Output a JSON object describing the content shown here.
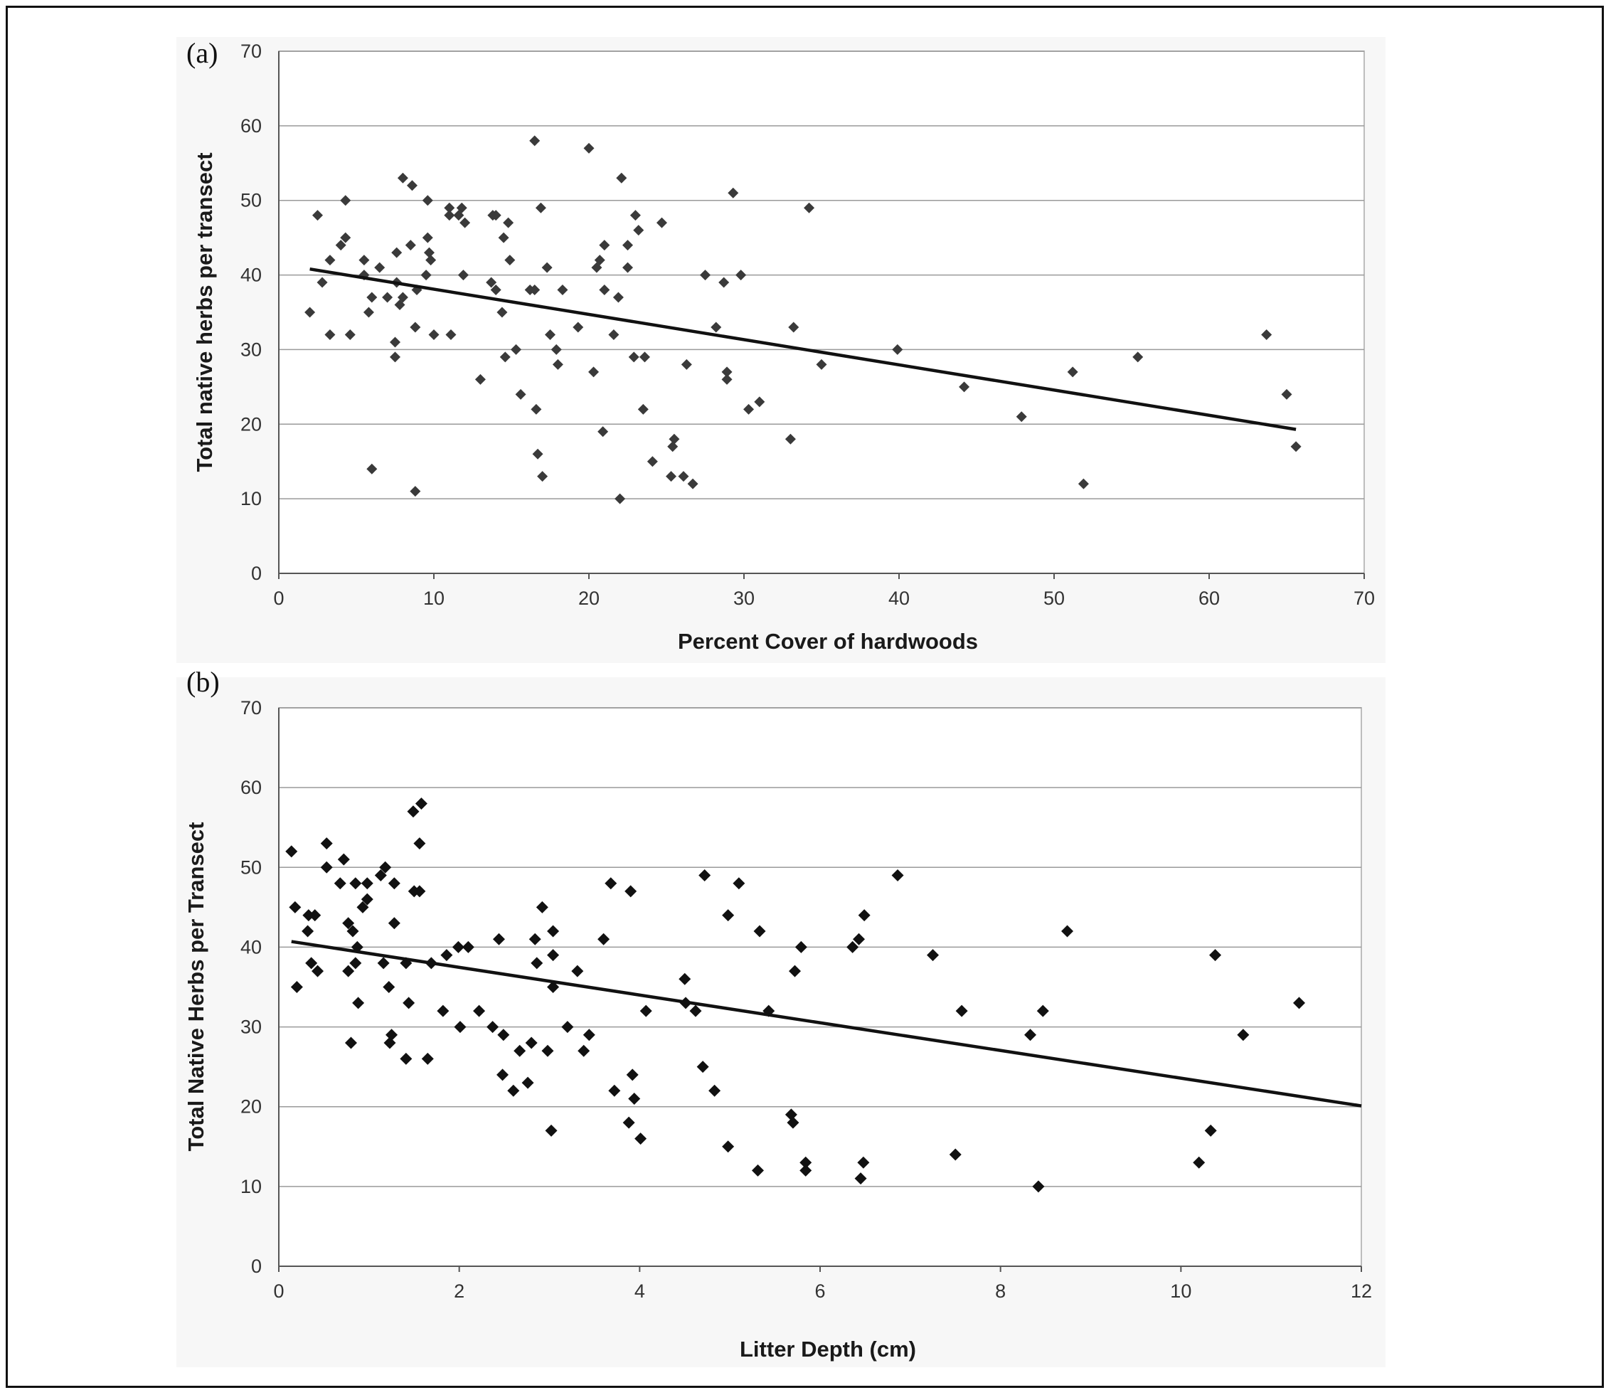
{
  "chart_data": [
    {
      "type": "scatter",
      "panel_label": "(a)",
      "xlabel": "Percent Cover of hardwoods",
      "ylabel": "Total native herbs per transect",
      "xlim": [
        0,
        70
      ],
      "ylim": [
        0,
        70
      ],
      "xticks": [
        "0",
        "10",
        "20",
        "30",
        "40",
        "50",
        "60",
        "70"
      ],
      "yticks": [
        "0",
        "10",
        "20",
        "30",
        "40",
        "50",
        "60",
        "70"
      ],
      "grid": "horizontal",
      "marker_color": "#3a3a3a",
      "trendline": {
        "x": [
          2.0,
          65.6
        ],
        "y": [
          40.8,
          19.3
        ]
      },
      "points": [
        [
          2.0,
          35
        ],
        [
          2.5,
          48
        ],
        [
          2.8,
          39
        ],
        [
          3.3,
          42
        ],
        [
          3.3,
          32
        ],
        [
          4.0,
          44
        ],
        [
          4.3,
          45
        ],
        [
          4.3,
          50
        ],
        [
          4.6,
          32
        ],
        [
          5.5,
          42
        ],
        [
          5.5,
          40
        ],
        [
          5.8,
          35
        ],
        [
          6.0,
          37
        ],
        [
          6.0,
          14
        ],
        [
          6.5,
          41
        ],
        [
          7.0,
          37
        ],
        [
          7.5,
          31
        ],
        [
          7.5,
          29
        ],
        [
          7.6,
          43
        ],
        [
          7.6,
          39
        ],
        [
          7.8,
          36
        ],
        [
          8.0,
          53
        ],
        [
          8.0,
          37
        ],
        [
          8.5,
          44
        ],
        [
          8.6,
          52
        ],
        [
          8.8,
          11
        ],
        [
          8.8,
          33
        ],
        [
          8.9,
          38
        ],
        [
          9.5,
          40
        ],
        [
          9.6,
          50
        ],
        [
          9.6,
          45
        ],
        [
          9.7,
          43
        ],
        [
          9.8,
          42
        ],
        [
          10.0,
          32
        ],
        [
          11.0,
          48
        ],
        [
          11.0,
          49
        ],
        [
          11.1,
          32
        ],
        [
          11.6,
          48
        ],
        [
          11.8,
          49
        ],
        [
          11.9,
          40
        ],
        [
          12.0,
          47
        ],
        [
          13.0,
          26
        ],
        [
          13.7,
          39
        ],
        [
          13.8,
          48
        ],
        [
          14.0,
          48
        ],
        [
          14.0,
          38
        ],
        [
          14.4,
          35
        ],
        [
          14.5,
          45
        ],
        [
          14.6,
          29
        ],
        [
          14.8,
          47
        ],
        [
          14.9,
          42
        ],
        [
          15.3,
          30
        ],
        [
          15.6,
          24
        ],
        [
          16.2,
          38
        ],
        [
          16.5,
          38
        ],
        [
          16.5,
          58
        ],
        [
          16.6,
          22
        ],
        [
          16.7,
          16
        ],
        [
          16.9,
          49
        ],
        [
          17.0,
          13
        ],
        [
          17.3,
          41
        ],
        [
          17.5,
          32
        ],
        [
          17.9,
          30
        ],
        [
          18.0,
          28
        ],
        [
          18.3,
          38
        ],
        [
          19.3,
          33
        ],
        [
          20.0,
          57
        ],
        [
          20.3,
          27
        ],
        [
          20.5,
          41
        ],
        [
          20.7,
          42
        ],
        [
          20.9,
          19
        ],
        [
          21.0,
          38
        ],
        [
          21.0,
          44
        ],
        [
          21.6,
          32
        ],
        [
          21.9,
          37
        ],
        [
          22.0,
          10
        ],
        [
          22.1,
          53
        ],
        [
          22.5,
          44
        ],
        [
          22.5,
          41
        ],
        [
          22.9,
          29
        ],
        [
          23.0,
          48
        ],
        [
          23.2,
          46
        ],
        [
          23.5,
          22
        ],
        [
          23.6,
          29
        ],
        [
          24.1,
          15
        ],
        [
          24.7,
          47
        ],
        [
          25.3,
          13
        ],
        [
          25.4,
          17
        ],
        [
          25.5,
          18
        ],
        [
          26.1,
          13
        ],
        [
          26.3,
          28
        ],
        [
          26.7,
          12
        ],
        [
          27.5,
          40
        ],
        [
          28.2,
          33
        ],
        [
          28.7,
          39
        ],
        [
          28.9,
          26
        ],
        [
          28.9,
          27
        ],
        [
          29.3,
          51
        ],
        [
          29.8,
          40
        ],
        [
          30.3,
          22
        ],
        [
          31.0,
          23
        ],
        [
          33.0,
          18
        ],
        [
          33.2,
          33
        ],
        [
          34.2,
          49
        ],
        [
          35.0,
          28
        ],
        [
          39.9,
          30
        ],
        [
          44.2,
          25
        ],
        [
          47.9,
          21
        ],
        [
          51.2,
          27
        ],
        [
          51.9,
          12
        ],
        [
          55.4,
          29
        ],
        [
          63.7,
          32
        ],
        [
          65.0,
          24
        ],
        [
          65.6,
          17
        ]
      ]
    },
    {
      "type": "scatter",
      "panel_label": "(b)",
      "xlabel": "Litter Depth (cm)",
      "ylabel": "Total Native Herbs per Transect",
      "xlim": [
        0,
        12
      ],
      "ylim": [
        0,
        70
      ],
      "xticks": [
        "0",
        "2",
        "4",
        "6",
        "8",
        "10",
        "12"
      ],
      "yticks": [
        "0",
        "10",
        "20",
        "30",
        "40",
        "50",
        "60",
        "70"
      ],
      "grid": "horizontal",
      "marker_color": "#111111",
      "trendline": {
        "x": [
          0.14,
          12.0
        ],
        "y": [
          40.7,
          20.1
        ]
      },
      "points": [
        [
          0.14,
          52
        ],
        [
          0.18,
          45
        ],
        [
          0.2,
          35
        ],
        [
          0.32,
          42
        ],
        [
          0.33,
          44
        ],
        [
          0.36,
          38
        ],
        [
          0.4,
          44
        ],
        [
          0.43,
          37
        ],
        [
          0.53,
          53
        ],
        [
          0.53,
          50
        ],
        [
          0.68,
          48
        ],
        [
          0.72,
          51
        ],
        [
          0.77,
          37
        ],
        [
          0.77,
          43
        ],
        [
          0.8,
          28
        ],
        [
          0.82,
          42
        ],
        [
          0.85,
          38
        ],
        [
          0.85,
          48
        ],
        [
          0.87,
          40
        ],
        [
          0.88,
          33
        ],
        [
          0.93,
          45
        ],
        [
          0.98,
          46
        ],
        [
          0.98,
          48
        ],
        [
          1.13,
          49
        ],
        [
          1.16,
          38
        ],
        [
          1.18,
          50
        ],
        [
          1.22,
          35
        ],
        [
          1.23,
          28
        ],
        [
          1.25,
          29
        ],
        [
          1.28,
          48
        ],
        [
          1.28,
          43
        ],
        [
          1.41,
          38
        ],
        [
          1.41,
          26
        ],
        [
          1.44,
          33
        ],
        [
          1.49,
          57
        ],
        [
          1.5,
          47
        ],
        [
          1.56,
          47
        ],
        [
          1.56,
          53
        ],
        [
          1.58,
          58
        ],
        [
          1.65,
          26
        ],
        [
          1.69,
          38
        ],
        [
          1.82,
          32
        ],
        [
          1.86,
          39
        ],
        [
          1.99,
          40
        ],
        [
          2.01,
          30
        ],
        [
          2.1,
          40
        ],
        [
          2.22,
          32
        ],
        [
          2.37,
          30
        ],
        [
          2.44,
          41
        ],
        [
          2.48,
          24
        ],
        [
          2.49,
          29
        ],
        [
          2.6,
          22
        ],
        [
          2.67,
          27
        ],
        [
          2.76,
          23
        ],
        [
          2.8,
          28
        ],
        [
          2.84,
          41
        ],
        [
          2.86,
          38
        ],
        [
          2.92,
          45
        ],
        [
          2.98,
          27
        ],
        [
          3.02,
          17
        ],
        [
          3.04,
          42
        ],
        [
          3.04,
          35
        ],
        [
          3.04,
          39
        ],
        [
          3.2,
          30
        ],
        [
          3.31,
          37
        ],
        [
          3.38,
          27
        ],
        [
          3.44,
          29
        ],
        [
          3.6,
          41
        ],
        [
          3.68,
          48
        ],
        [
          3.72,
          22
        ],
        [
          3.88,
          18
        ],
        [
          3.9,
          47
        ],
        [
          3.92,
          24
        ],
        [
          3.94,
          21
        ],
        [
          4.01,
          16
        ],
        [
          4.07,
          32
        ],
        [
          4.5,
          36
        ],
        [
          4.51,
          33
        ],
        [
          4.62,
          32
        ],
        [
          4.7,
          25
        ],
        [
          4.72,
          49
        ],
        [
          4.83,
          22
        ],
        [
          4.98,
          15
        ],
        [
          4.98,
          44
        ],
        [
          5.1,
          48
        ],
        [
          5.31,
          12
        ],
        [
          5.33,
          42
        ],
        [
          5.43,
          32
        ],
        [
          5.68,
          19
        ],
        [
          5.7,
          18
        ],
        [
          5.72,
          37
        ],
        [
          5.79,
          40
        ],
        [
          5.84,
          13
        ],
        [
          5.84,
          12
        ],
        [
          6.36,
          40
        ],
        [
          6.43,
          41
        ],
        [
          6.45,
          11
        ],
        [
          6.48,
          13
        ],
        [
          6.49,
          44
        ],
        [
          6.86,
          49
        ],
        [
          7.25,
          39
        ],
        [
          7.5,
          14
        ],
        [
          7.57,
          32
        ],
        [
          8.33,
          29
        ],
        [
          8.42,
          10
        ],
        [
          8.47,
          32
        ],
        [
          8.74,
          42
        ],
        [
          10.2,
          13
        ],
        [
          10.33,
          17
        ],
        [
          10.38,
          39
        ],
        [
          10.69,
          29
        ],
        [
          11.31,
          33
        ]
      ]
    }
  ]
}
